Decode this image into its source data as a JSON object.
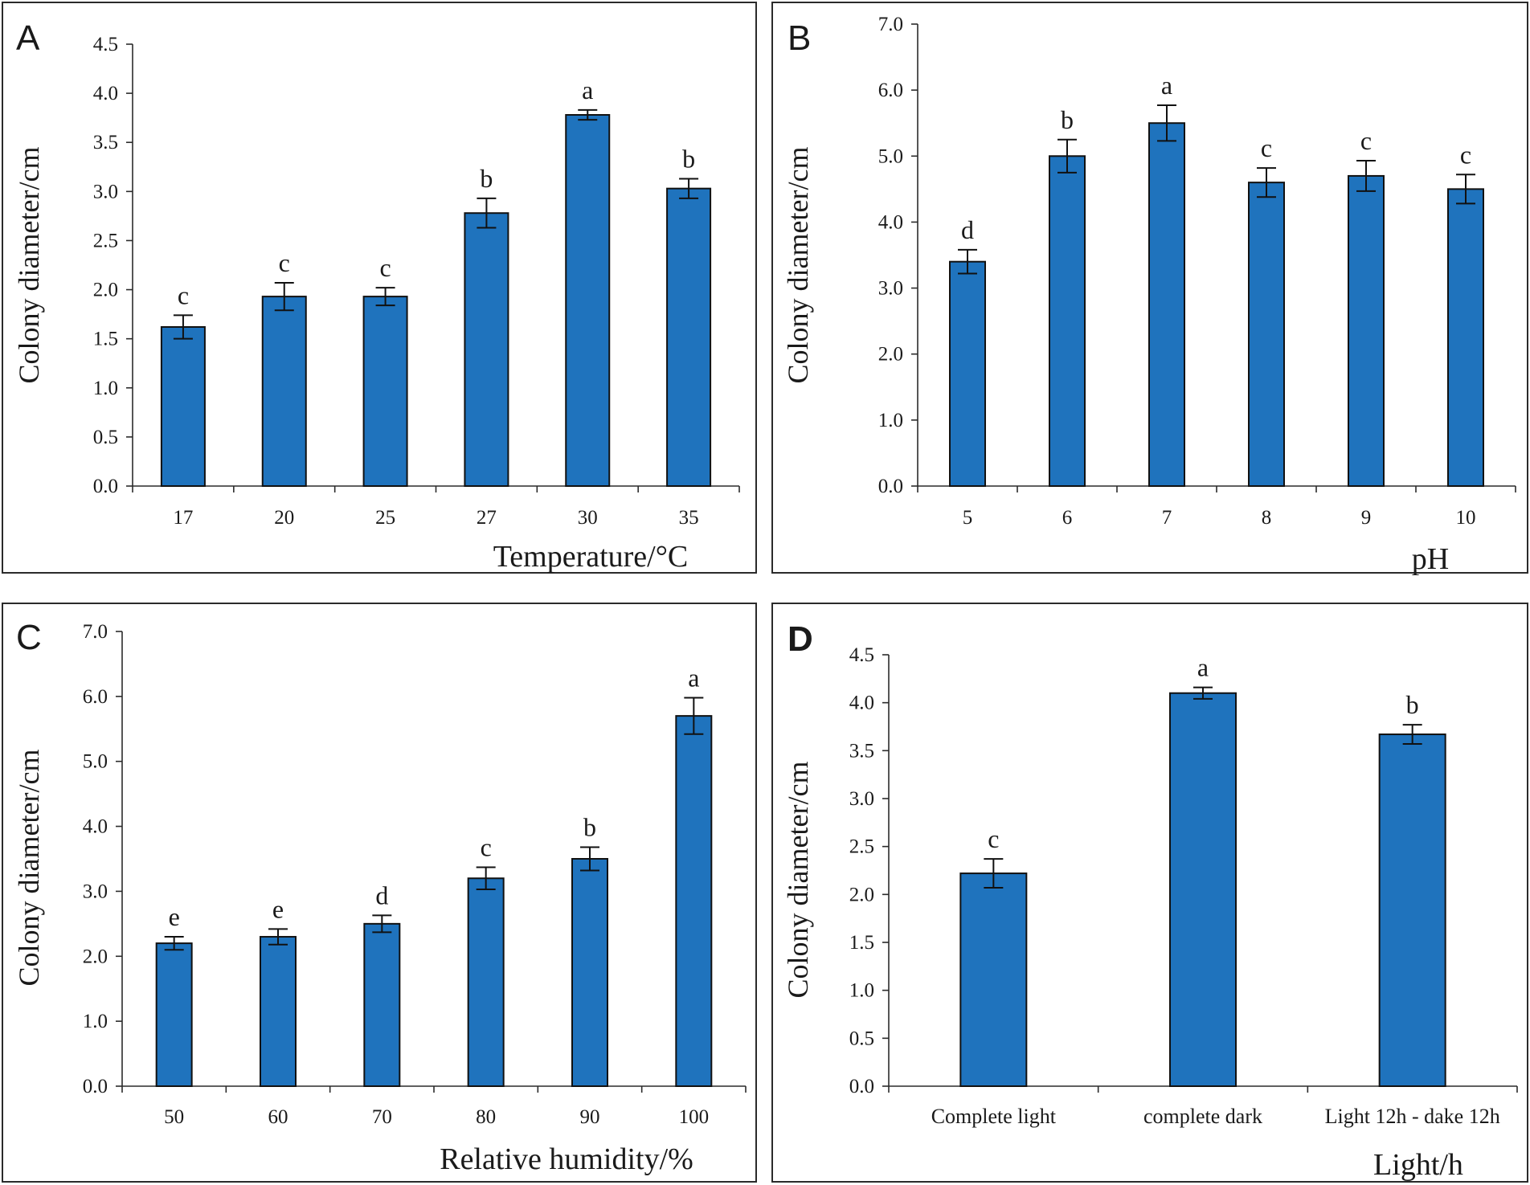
{
  "colors": {
    "bar": "#1f73bd",
    "axis": "#2b2b2b",
    "text": "#1a1a1a"
  },
  "chart_data": [
    {
      "panel": "A",
      "type": "bar",
      "title": "",
      "xlabel": "Temperature/°C",
      "ylabel": "Colony diameter/cm",
      "ylim": [
        0,
        4.5
      ],
      "ytick_step": 0.5,
      "ytick_decimals": 1,
      "categories": [
        "17",
        "20",
        "25",
        "27",
        "30",
        "35"
      ],
      "values": [
        1.62,
        1.93,
        1.93,
        2.78,
        3.78,
        3.03
      ],
      "errors": [
        0.12,
        0.14,
        0.09,
        0.15,
        0.05,
        0.1
      ],
      "letters": [
        "c",
        "c",
        "c",
        "b",
        "a",
        "b"
      ],
      "grid": false
    },
    {
      "panel": "B",
      "type": "bar",
      "title": "",
      "xlabel": "pH",
      "ylabel": "Colony diameter/cm",
      "ylim": [
        0,
        7.0
      ],
      "ytick_step": 1.0,
      "ytick_decimals": 1,
      "categories": [
        "5",
        "6",
        "7",
        "8",
        "9",
        "10"
      ],
      "values": [
        3.4,
        5.0,
        5.5,
        4.6,
        4.7,
        4.5
      ],
      "errors": [
        0.18,
        0.25,
        0.27,
        0.22,
        0.23,
        0.22
      ],
      "letters": [
        "d",
        "b",
        "a",
        "c",
        "c",
        "c"
      ],
      "grid": false
    },
    {
      "panel": "C",
      "type": "bar",
      "title": "",
      "xlabel": "Relative humidity/%",
      "ylabel": "Colony diameter/cm",
      "ylim": [
        0,
        7.0
      ],
      "ytick_step": 1.0,
      "ytick_decimals": 1,
      "categories": [
        "50",
        "60",
        "70",
        "80",
        "90",
        "100"
      ],
      "values": [
        2.2,
        2.3,
        2.5,
        3.2,
        3.5,
        5.7
      ],
      "errors": [
        0.1,
        0.12,
        0.13,
        0.17,
        0.18,
        0.28
      ],
      "letters": [
        "e",
        "e",
        "d",
        "c",
        "b",
        "a"
      ],
      "grid": false
    },
    {
      "panel": "D",
      "type": "bar",
      "title": "",
      "xlabel": "Light/h",
      "ylabel": "Colony diameter/cm",
      "ylim": [
        0,
        4.5
      ],
      "ytick_step": 0.5,
      "ytick_decimals": 1,
      "categories": [
        "Complete light",
        "complete dark",
        "Light 12h - dake 12h"
      ],
      "values": [
        2.22,
        4.1,
        3.67
      ],
      "errors": [
        0.15,
        0.06,
        0.1
      ],
      "letters": [
        "c",
        "a",
        "b"
      ],
      "grid": false
    }
  ]
}
